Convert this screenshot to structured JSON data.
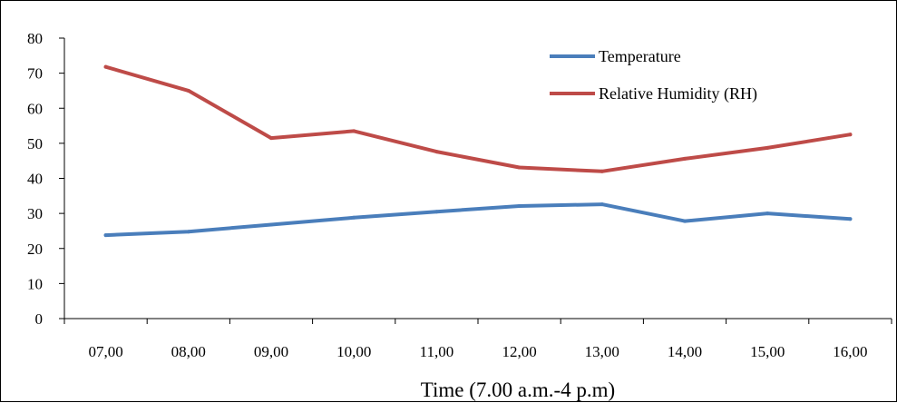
{
  "chart_data": {
    "type": "line",
    "categories": [
      "07,00",
      "08,00",
      "09,00",
      "10,00",
      "11,00",
      "12,00",
      "13,00",
      "14,00",
      "15,00",
      "16,00"
    ],
    "series": [
      {
        "name": "Temperature",
        "color": "#4A7EBB",
        "values": [
          23.8,
          24.8,
          26.8,
          28.8,
          30.5,
          32.1,
          32.6,
          27.8,
          30.0,
          28.4
        ]
      },
      {
        "name": "Relative Humidity (RH)",
        "color": "#BE4B48",
        "values": [
          71.8,
          65.0,
          51.5,
          53.5,
          47.6,
          43.1,
          42.0,
          45.6,
          48.7,
          52.5
        ]
      }
    ],
    "y_ticks": [
      "0",
      "10",
      "20",
      "30",
      "40",
      "50",
      "60",
      "70",
      "80"
    ],
    "ylim": [
      0,
      80
    ],
    "xlabel": "Time (7.00 a.m.-4 p.m)",
    "ylabel": "",
    "title": "",
    "grid": false,
    "legend_position": "top-right"
  }
}
